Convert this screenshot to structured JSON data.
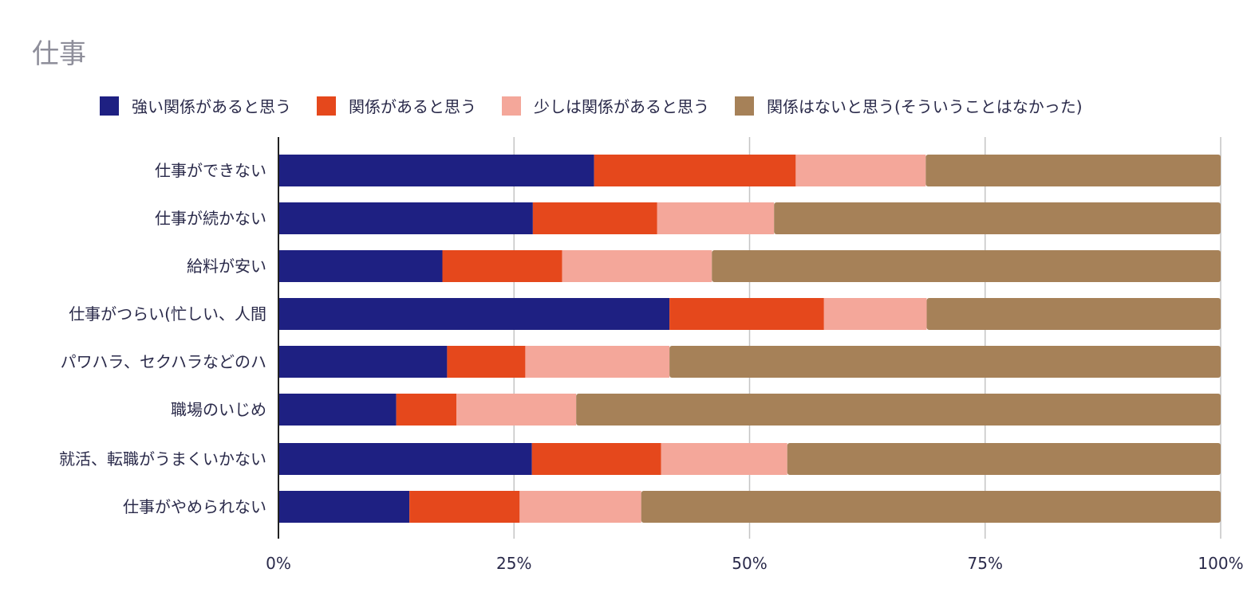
{
  "chart_data": {
    "type": "bar",
    "orientation": "horizontal",
    "stacked": true,
    "title": "仕事",
    "categories": [
      "仕事ができない",
      "仕事が続かない",
      "給料が安い",
      "仕事がつらい(忙しい、人間",
      "パワハラ、セクハラなどのハ",
      "職場のいじめ",
      "就活、転職がうまくいかない",
      "仕事がやめられない"
    ],
    "series": [
      {
        "name": "強い関係があると思う",
        "color": "#1e2082",
        "values": [
          33.5,
          27.0,
          17.4,
          41.5,
          17.9,
          12.5,
          26.9,
          13.9
        ]
      },
      {
        "name": "関係があると思う",
        "color": "#e5481c",
        "values": [
          21.4,
          13.2,
          12.7,
          16.4,
          8.3,
          6.4,
          13.7,
          11.7
        ]
      },
      {
        "name": "少しは関係があると思う",
        "color": "#f4a79a",
        "values": [
          13.8,
          12.4,
          15.9,
          10.9,
          15.3,
          12.7,
          13.4,
          12.9
        ]
      },
      {
        "name": "関係はないと思う(そういうことはなかった)",
        "color": "#a68158",
        "values": [
          31.3,
          47.4,
          54.0,
          31.2,
          58.5,
          68.4,
          46.0,
          61.5
        ]
      }
    ],
    "xlim": [
      0,
      100
    ],
    "xticks": [
      "0%",
      "25%",
      "50%",
      "75%",
      "100%"
    ],
    "grid": true,
    "legend": "top"
  }
}
